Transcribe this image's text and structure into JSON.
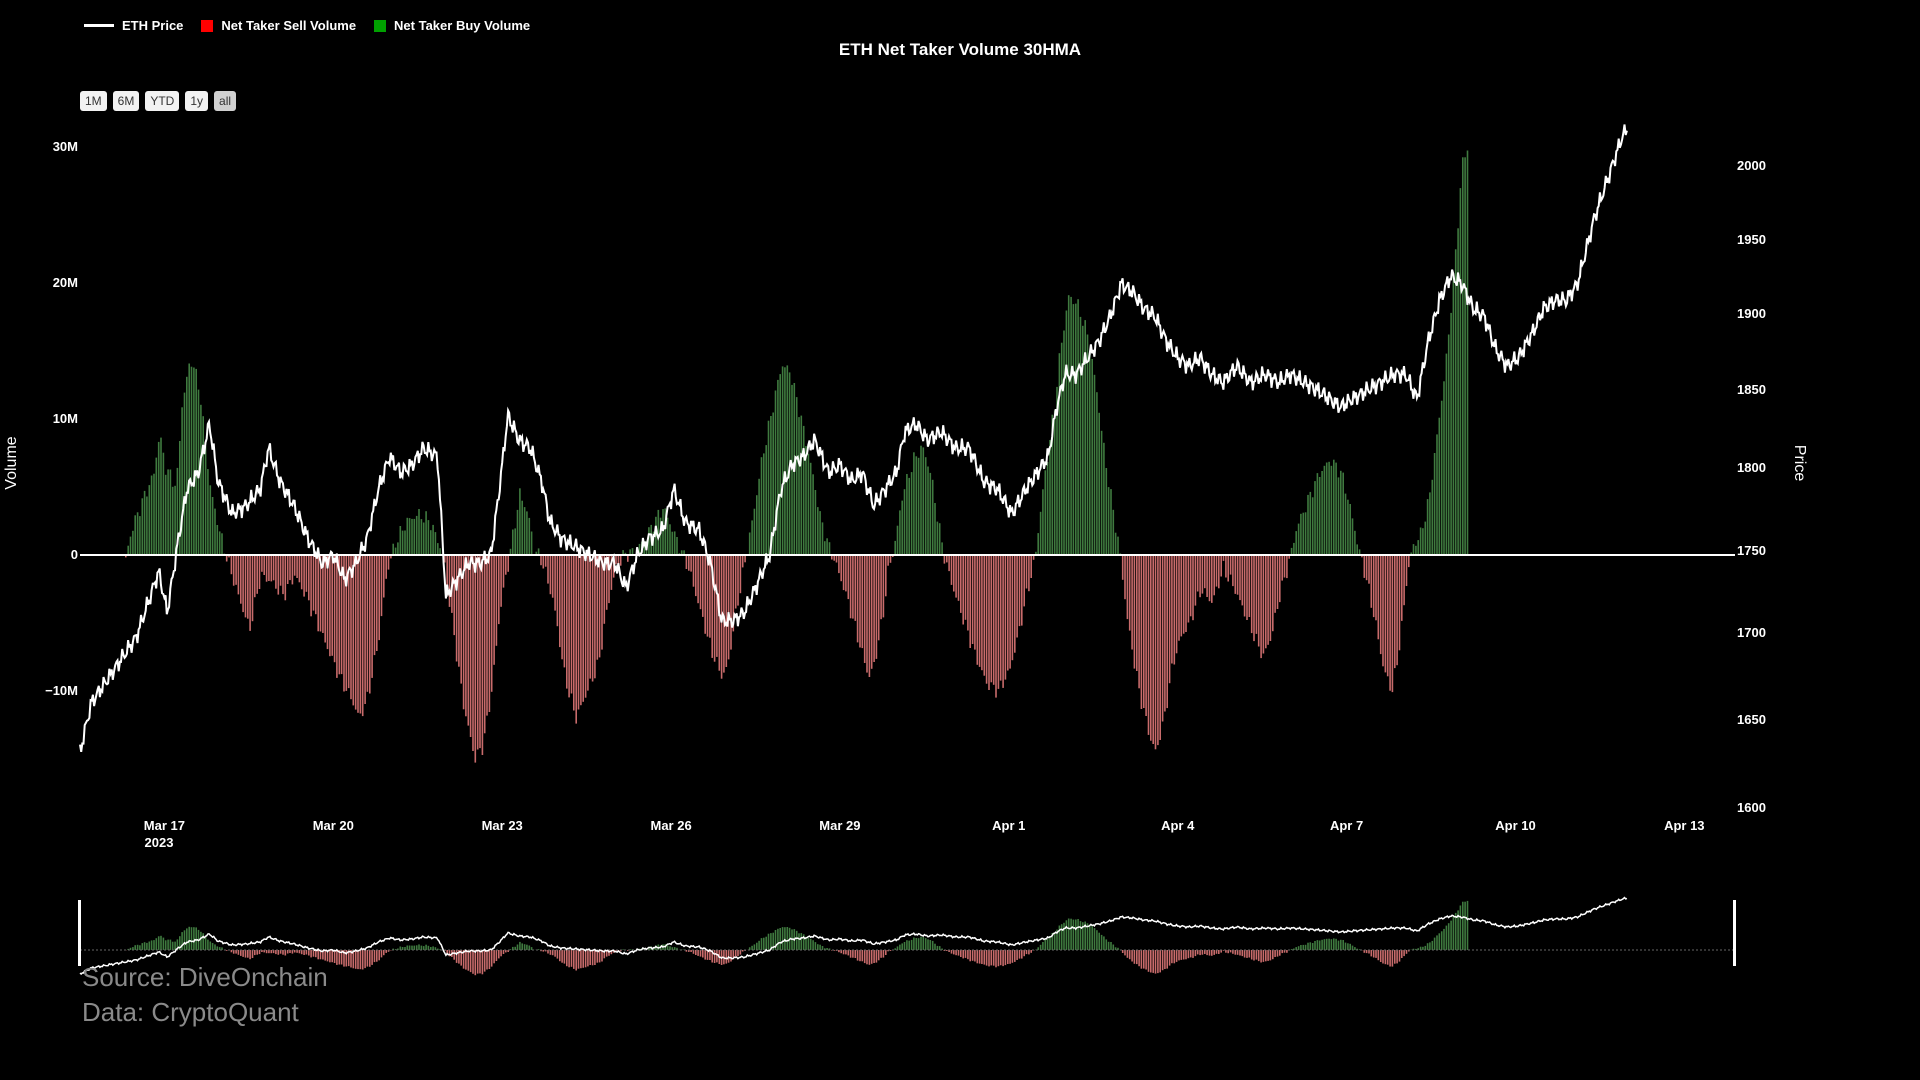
{
  "legend": {
    "price_label": "ETH Price",
    "sell_label": "Net Taker Sell Volume",
    "buy_label": "Net Taker Buy Volume"
  },
  "range_buttons": [
    "1M",
    "6M",
    "YTD",
    "1y",
    "all"
  ],
  "source": {
    "line1": "Source: DiveOnchain",
    "line2": "Data: CryptoQuant"
  },
  "colors": {
    "background": "#000000",
    "buy": "#3f7a3f",
    "sell": "#c86b6b",
    "buy_legend": "#00a000",
    "sell_legend": "#ff0000",
    "price_line": "#ffffff"
  },
  "chart_data": {
    "type": "bar",
    "title": "ETH Net Taker Volume 30HMA",
    "xlabel": "",
    "ylabel": "Volume",
    "y2label": "Price",
    "x_ticks": [
      "Mar 17",
      "Mar 20",
      "Mar 23",
      "Mar 26",
      "Mar 29",
      "Apr 1",
      "Apr 4",
      "Apr 7",
      "Apr 10",
      "Apr 13"
    ],
    "x_year_label": "2023",
    "y_ticks": [
      "30M",
      "20M",
      "10M",
      "0",
      "−10M"
    ],
    "y2_ticks": [
      "2000",
      "1950",
      "1900",
      "1850",
      "1800",
      "1750",
      "1700",
      "1650",
      "1600"
    ],
    "ylim": [
      -17,
      30
    ],
    "y2lim": [
      1600,
      2010
    ],
    "x_range_days": [
      15.5,
      44.9
    ],
    "legend_position": "top-left",
    "grid": false,
    "volume_keypoints_millions": [
      [
        16.3,
        -0.3
      ],
      [
        16.4,
        1.8
      ],
      [
        16.6,
        4.0
      ],
      [
        16.8,
        6.0
      ],
      [
        16.9,
        9.0
      ],
      [
        17.0,
        6.5
      ],
      [
        17.2,
        5.0
      ],
      [
        17.3,
        11.0
      ],
      [
        17.45,
        14.5
      ],
      [
        17.6,
        12.5
      ],
      [
        17.8,
        5.0
      ],
      [
        17.95,
        2.0
      ],
      [
        18.1,
        -0.3
      ],
      [
        18.3,
        -3.0
      ],
      [
        18.5,
        -5.5
      ],
      [
        18.7,
        -1.5
      ],
      [
        18.9,
        -2.0
      ],
      [
        19.1,
        -3.0
      ],
      [
        19.3,
        -1.5
      ],
      [
        19.5,
        -3.0
      ],
      [
        19.7,
        -5.0
      ],
      [
        19.9,
        -7.0
      ],
      [
        20.1,
        -9.0
      ],
      [
        20.3,
        -10.5
      ],
      [
        20.45,
        -12.0
      ],
      [
        20.6,
        -10.5
      ],
      [
        20.8,
        -6.0
      ],
      [
        20.95,
        -1.0
      ],
      [
        21.1,
        1.0
      ],
      [
        21.3,
        2.5
      ],
      [
        21.5,
        3.0
      ],
      [
        21.7,
        2.5
      ],
      [
        21.85,
        1.0
      ],
      [
        21.95,
        -0.3
      ],
      [
        22.1,
        -5.0
      ],
      [
        22.3,
        -11.0
      ],
      [
        22.5,
        -15.0
      ],
      [
        22.65,
        -14.0
      ],
      [
        22.8,
        -10.0
      ],
      [
        22.95,
        -4.0
      ],
      [
        23.1,
        -0.5
      ],
      [
        23.2,
        2.0
      ],
      [
        23.3,
        4.5
      ],
      [
        23.45,
        3.0
      ],
      [
        23.55,
        0.5
      ],
      [
        23.7,
        -0.5
      ],
      [
        23.9,
        -3.5
      ],
      [
        24.1,
        -9.0
      ],
      [
        24.3,
        -12.0
      ],
      [
        24.5,
        -10.0
      ],
      [
        24.7,
        -8.0
      ],
      [
        24.85,
        -4.0
      ],
      [
        25.0,
        -1.0
      ],
      [
        25.15,
        0.0
      ],
      [
        25.3,
        0.2
      ],
      [
        25.5,
        1.0
      ],
      [
        25.7,
        2.5
      ],
      [
        25.85,
        3.5
      ],
      [
        26.0,
        2.0
      ],
      [
        26.15,
        0.5
      ],
      [
        26.3,
        -1.0
      ],
      [
        26.5,
        -4.0
      ],
      [
        26.7,
        -7.0
      ],
      [
        26.9,
        -9.0
      ],
      [
        27.0,
        -8.0
      ],
      [
        27.15,
        -4.0
      ],
      [
        27.3,
        -0.5
      ],
      [
        27.45,
        3.0
      ],
      [
        27.6,
        7.0
      ],
      [
        27.8,
        11.0
      ],
      [
        27.95,
        14.0
      ],
      [
        28.1,
        13.5
      ],
      [
        28.3,
        10.0
      ],
      [
        28.5,
        6.0
      ],
      [
        28.65,
        2.5
      ],
      [
        28.8,
        0.5
      ],
      [
        28.9,
        -0.5
      ],
      [
        29.1,
        -3.0
      ],
      [
        29.3,
        -6.0
      ],
      [
        29.5,
        -9.0
      ],
      [
        29.6,
        -8.0
      ],
      [
        29.75,
        -4.5
      ],
      [
        29.85,
        -1.0
      ],
      [
        29.95,
        0.5
      ],
      [
        30.1,
        4.5
      ],
      [
        30.3,
        7.0
      ],
      [
        30.45,
        8.0
      ],
      [
        30.6,
        6.0
      ],
      [
        30.75,
        2.0
      ],
      [
        30.85,
        -0.3
      ],
      [
        31.0,
        -2.5
      ],
      [
        31.2,
        -5.0
      ],
      [
        31.4,
        -7.5
      ],
      [
        31.6,
        -9.5
      ],
      [
        31.8,
        -10.0
      ],
      [
        32.0,
        -8.5
      ],
      [
        32.15,
        -6.0
      ],
      [
        32.3,
        -3.0
      ],
      [
        32.45,
        -0.3
      ],
      [
        32.6,
        5.0
      ],
      [
        32.8,
        11.0
      ],
      [
        32.9,
        15.0
      ],
      [
        33.05,
        19.0
      ],
      [
        33.2,
        18.5
      ],
      [
        33.4,
        16.0
      ],
      [
        33.55,
        12.0
      ],
      [
        33.7,
        7.0
      ],
      [
        33.85,
        3.0
      ],
      [
        33.95,
        0.5
      ],
      [
        34.1,
        -5.0
      ],
      [
        34.3,
        -10.0
      ],
      [
        34.5,
        -13.5
      ],
      [
        34.6,
        -14.5
      ],
      [
        34.75,
        -12.0
      ],
      [
        34.9,
        -8.0
      ],
      [
        35.05,
        -6.0
      ],
      [
        35.2,
        -5.0
      ],
      [
        35.4,
        -2.5
      ],
      [
        35.6,
        -3.5
      ],
      [
        35.8,
        -1.0
      ],
      [
        36.0,
        -2.5
      ],
      [
        36.15,
        -4.0
      ],
      [
        36.35,
        -6.0
      ],
      [
        36.5,
        -7.5
      ],
      [
        36.65,
        -6.0
      ],
      [
        36.8,
        -3.0
      ],
      [
        36.95,
        -0.8
      ],
      [
        37.1,
        2.0
      ],
      [
        37.3,
        4.0
      ],
      [
        37.5,
        6.0
      ],
      [
        37.7,
        7.0
      ],
      [
        37.9,
        6.0
      ],
      [
        38.05,
        3.5
      ],
      [
        38.2,
        0.5
      ],
      [
        38.35,
        -2.0
      ],
      [
        38.5,
        -5.0
      ],
      [
        38.65,
        -8.5
      ],
      [
        38.8,
        -10.0
      ],
      [
        38.95,
        -6.0
      ],
      [
        39.05,
        -2.0
      ],
      [
        39.15,
        0.5
      ],
      [
        39.3,
        1.5
      ],
      [
        39.45,
        4.0
      ],
      [
        39.6,
        9.0
      ],
      [
        39.75,
        14.0
      ],
      [
        39.9,
        21.0
      ],
      [
        40.05,
        29.0
      ],
      [
        40.15,
        30.0
      ]
    ],
    "price_keypoints_usd": [
      [
        15.5,
        1630
      ],
      [
        15.7,
        1660
      ],
      [
        15.9,
        1670
      ],
      [
        16.1,
        1680
      ],
      [
        16.3,
        1690
      ],
      [
        16.5,
        1700
      ],
      [
        16.7,
        1720
      ],
      [
        16.9,
        1740
      ],
      [
        17.05,
        1715
      ],
      [
        17.25,
        1760
      ],
      [
        17.4,
        1790
      ],
      [
        17.6,
        1800
      ],
      [
        17.8,
        1830
      ],
      [
        17.95,
        1795
      ],
      [
        18.2,
        1775
      ],
      [
        18.45,
        1780
      ],
      [
        18.7,
        1790
      ],
      [
        18.85,
        1815
      ],
      [
        19.05,
        1795
      ],
      [
        19.3,
        1780
      ],
      [
        19.55,
        1760
      ],
      [
        19.8,
        1745
      ],
      [
        20.0,
        1750
      ],
      [
        20.2,
        1735
      ],
      [
        20.4,
        1745
      ],
      [
        20.6,
        1760
      ],
      [
        20.8,
        1790
      ],
      [
        21.0,
        1810
      ],
      [
        21.2,
        1800
      ],
      [
        21.4,
        1805
      ],
      [
        21.6,
        1815
      ],
      [
        21.85,
        1810
      ],
      [
        22.0,
        1725
      ],
      [
        22.2,
        1735
      ],
      [
        22.4,
        1745
      ],
      [
        22.6,
        1745
      ],
      [
        22.8,
        1750
      ],
      [
        22.95,
        1790
      ],
      [
        23.1,
        1835
      ],
      [
        23.3,
        1820
      ],
      [
        23.5,
        1815
      ],
      [
        23.7,
        1795
      ],
      [
        23.85,
        1770
      ],
      [
        24.05,
        1760
      ],
      [
        24.3,
        1755
      ],
      [
        24.55,
        1750
      ],
      [
        24.8,
        1745
      ],
      [
        25.0,
        1745
      ],
      [
        25.2,
        1730
      ],
      [
        25.4,
        1750
      ],
      [
        25.6,
        1760
      ],
      [
        25.85,
        1765
      ],
      [
        26.05,
        1790
      ],
      [
        26.25,
        1770
      ],
      [
        26.5,
        1765
      ],
      [
        26.7,
        1745
      ],
      [
        26.9,
        1710
      ],
      [
        27.1,
        1710
      ],
      [
        27.3,
        1715
      ],
      [
        27.5,
        1730
      ],
      [
        27.75,
        1750
      ],
      [
        27.95,
        1790
      ],
      [
        28.15,
        1805
      ],
      [
        28.35,
        1810
      ],
      [
        28.55,
        1820
      ],
      [
        28.8,
        1800
      ],
      [
        29.0,
        1805
      ],
      [
        29.2,
        1795
      ],
      [
        29.4,
        1800
      ],
      [
        29.6,
        1780
      ],
      [
        29.8,
        1790
      ],
      [
        30.0,
        1800
      ],
      [
        30.15,
        1825
      ],
      [
        30.35,
        1830
      ],
      [
        30.55,
        1820
      ],
      [
        30.8,
        1825
      ],
      [
        31.05,
        1815
      ],
      [
        31.3,
        1815
      ],
      [
        31.55,
        1795
      ],
      [
        31.8,
        1790
      ],
      [
        32.05,
        1775
      ],
      [
        32.3,
        1790
      ],
      [
        32.5,
        1800
      ],
      [
        32.7,
        1810
      ],
      [
        32.85,
        1840
      ],
      [
        33.0,
        1860
      ],
      [
        33.2,
        1860
      ],
      [
        33.4,
        1870
      ],
      [
        33.6,
        1880
      ],
      [
        33.8,
        1895
      ],
      [
        34.0,
        1915
      ],
      [
        34.2,
        1910
      ],
      [
        34.4,
        1900
      ],
      [
        34.6,
        1895
      ],
      [
        34.8,
        1880
      ],
      [
        35.0,
        1870
      ],
      [
        35.2,
        1865
      ],
      [
        35.4,
        1870
      ],
      [
        35.6,
        1860
      ],
      [
        35.8,
        1855
      ],
      [
        36.05,
        1865
      ],
      [
        36.3,
        1855
      ],
      [
        36.55,
        1860
      ],
      [
        36.8,
        1855
      ],
      [
        37.0,
        1860
      ],
      [
        37.25,
        1855
      ],
      [
        37.5,
        1850
      ],
      [
        37.7,
        1845
      ],
      [
        37.9,
        1840
      ],
      [
        38.1,
        1845
      ],
      [
        38.35,
        1850
      ],
      [
        38.6,
        1855
      ],
      [
        38.85,
        1860
      ],
      [
        39.05,
        1860
      ],
      [
        39.25,
        1845
      ],
      [
        39.45,
        1880
      ],
      [
        39.65,
        1905
      ],
      [
        39.85,
        1920
      ],
      [
        40.05,
        1915
      ],
      [
        40.25,
        1900
      ],
      [
        40.45,
        1895
      ],
      [
        40.65,
        1875
      ],
      [
        40.85,
        1865
      ],
      [
        41.05,
        1870
      ],
      [
        41.3,
        1885
      ],
      [
        41.5,
        1900
      ],
      [
        41.7,
        1905
      ],
      [
        41.9,
        1905
      ],
      [
        42.1,
        1915
      ],
      [
        42.25,
        1935
      ],
      [
        42.4,
        1955
      ],
      [
        42.55,
        1970
      ],
      [
        42.75,
        1990
      ],
      [
        42.9,
        2005
      ],
      [
        43.0,
        2010
      ]
    ]
  }
}
